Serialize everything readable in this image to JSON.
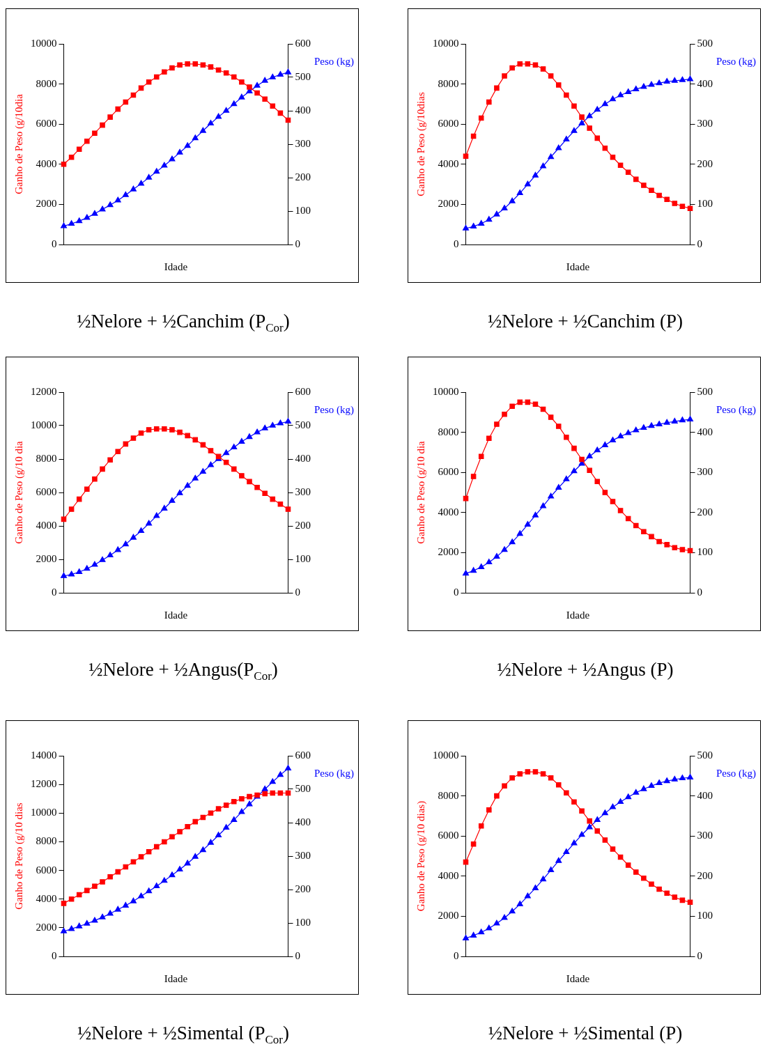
{
  "chart_data": [
    {
      "type": "line",
      "title": "½Nelore + ½Canchim (P$_{Cor}$)",
      "xlabel": "Idade",
      "ylabel": "Ganho de Peso (g/10dia",
      "y2label": "Peso (kg)",
      "categories": [
        null,
        null,
        null,
        null,
        null,
        null,
        null,
        null,
        null,
        null,
        null,
        null,
        null,
        null,
        null,
        null,
        null,
        null,
        null,
        null,
        null,
        null,
        null,
        null,
        null,
        null,
        null,
        null,
        null,
        null
      ],
      "ylim": [
        0,
        10000
      ],
      "yticks": [
        0,
        2000,
        4000,
        6000,
        8000,
        10000
      ],
      "y2lim": [
        0,
        600
      ],
      "y2ticks": [
        0,
        100,
        200,
        300,
        400,
        500,
        600
      ],
      "tick_labels": [
        "y",
        "y2"
      ],
      "grid": false,
      "legend": false,
      "line_style": "solid",
      "series": [
        {
          "color": "#ff0000",
          "marker": "square",
          "values": [
            4000,
            4350,
            4750,
            5150,
            5550,
            5950,
            6350,
            6750,
            7100,
            7450,
            7800,
            8100,
            8350,
            8600,
            8800,
            8950,
            9000,
            9000,
            8950,
            8850,
            8700,
            8550,
            8350,
            8100,
            7850,
            7550,
            7250,
            6900,
            6550,
            6200
          ]
        },
        {
          "color": "#0000ff",
          "marker": "triangle",
          "axis": "y2",
          "values": [
            55,
            62,
            70,
            80,
            92,
            105,
            118,
            132,
            148,
            165,
            182,
            200,
            218,
            236,
            255,
            275,
            295,
            318,
            340,
            362,
            382,
            400,
            420,
            440,
            458,
            475,
            490,
            500,
            508,
            515
          ]
        }
      ]
    },
    {
      "type": "line",
      "title": "½Nelore + ½Canchim (P)",
      "xlabel": "Idade",
      "ylabel": "Ganho de Peso (g/10dias",
      "y2label": "Peso (kg)",
      "categories": [
        null,
        null,
        null,
        null,
        null,
        null,
        null,
        null,
        null,
        null,
        null,
        null,
        null,
        null,
        null,
        null,
        null,
        null,
        null,
        null,
        null,
        null,
        null,
        null,
        null,
        null,
        null,
        null,
        null,
        null
      ],
      "ylim": [
        0,
        10000
      ],
      "yticks": [
        0,
        2000,
        4000,
        6000,
        8000,
        10000
      ],
      "y2lim": [
        0,
        500
      ],
      "y2ticks": [
        0,
        100,
        200,
        300,
        400,
        500
      ],
      "tick_labels": [
        "y",
        "y2"
      ],
      "grid": false,
      "legend": false,
      "line_style": "solid",
      "series": [
        {
          "color": "#ff0000",
          "marker": "square",
          "values": [
            4400,
            5400,
            6300,
            7100,
            7800,
            8400,
            8800,
            9000,
            9000,
            8950,
            8750,
            8400,
            7950,
            7450,
            6900,
            6350,
            5800,
            5300,
            4800,
            4350,
            3950,
            3600,
            3250,
            2950,
            2700,
            2450,
            2250,
            2050,
            1900,
            1800
          ]
        },
        {
          "color": "#0000ff",
          "marker": "triangle",
          "axis": "y2",
          "values": [
            40,
            45,
            52,
            62,
            75,
            90,
            108,
            128,
            150,
            172,
            195,
            218,
            240,
            262,
            283,
            302,
            320,
            336,
            350,
            362,
            372,
            380,
            387,
            393,
            398,
            402,
            406,
            408,
            410,
            412
          ]
        }
      ]
    },
    {
      "type": "line",
      "title": "½Nelore + ½Angus(P$_{Cor}$)",
      "xlabel": "Idade",
      "ylabel": "Ganho de Peso (g/10 dia",
      "y2label": "Peso (kg)",
      "categories": [
        null,
        null,
        null,
        null,
        null,
        null,
        null,
        null,
        null,
        null,
        null,
        null,
        null,
        null,
        null,
        null,
        null,
        null,
        null,
        null,
        null,
        null,
        null,
        null,
        null,
        null,
        null,
        null,
        null,
        null
      ],
      "ylim": [
        0,
        12000
      ],
      "yticks": [
        0,
        2000,
        4000,
        6000,
        8000,
        10000,
        12000
      ],
      "y2lim": [
        0,
        600
      ],
      "y2ticks": [
        0,
        100,
        200,
        300,
        400,
        500,
        600
      ],
      "tick_labels": [
        "y",
        "y2"
      ],
      "grid": false,
      "legend": false,
      "line_style": "solid",
      "series": [
        {
          "color": "#ff0000",
          "marker": "square",
          "values": [
            4400,
            5000,
            5600,
            6200,
            6800,
            7400,
            7950,
            8450,
            8900,
            9250,
            9550,
            9750,
            9800,
            9800,
            9750,
            9600,
            9400,
            9150,
            8850,
            8500,
            8150,
            7800,
            7400,
            7000,
            6650,
            6300,
            5950,
            5600,
            5300,
            5000
          ]
        },
        {
          "color": "#0000ff",
          "marker": "triangle",
          "axis": "y2",
          "values": [
            50,
            55,
            62,
            72,
            84,
            98,
            112,
            128,
            145,
            165,
            185,
            207,
            230,
            252,
            275,
            298,
            320,
            342,
            362,
            382,
            400,
            418,
            435,
            452,
            466,
            480,
            492,
            500,
            507,
            512
          ]
        }
      ]
    },
    {
      "type": "line",
      "title": "½Nelore + ½Angus (P)",
      "xlabel": "Idade",
      "ylabel": "Ganho de Peso (g/10 dia",
      "y2label": "Peso (kg)",
      "categories": [
        null,
        null,
        null,
        null,
        null,
        null,
        null,
        null,
        null,
        null,
        null,
        null,
        null,
        null,
        null,
        null,
        null,
        null,
        null,
        null,
        null,
        null,
        null,
        null,
        null,
        null,
        null,
        null,
        null,
        null
      ],
      "ylim": [
        0,
        10000
      ],
      "yticks": [
        0,
        2000,
        4000,
        6000,
        8000,
        10000
      ],
      "y2lim": [
        0,
        500
      ],
      "y2ticks": [
        0,
        100,
        200,
        300,
        400,
        500
      ],
      "tick_labels": [
        "y",
        "y2"
      ],
      "grid": false,
      "legend": false,
      "line_style": "solid",
      "series": [
        {
          "color": "#ff0000",
          "marker": "square",
          "values": [
            4700,
            5800,
            6800,
            7700,
            8400,
            8900,
            9300,
            9500,
            9500,
            9400,
            9150,
            8750,
            8300,
            7750,
            7200,
            6650,
            6100,
            5550,
            5000,
            4550,
            4100,
            3700,
            3350,
            3050,
            2800,
            2550,
            2400,
            2250,
            2150,
            2100
          ]
        },
        {
          "color": "#0000ff",
          "marker": "triangle",
          "axis": "y2",
          "values": [
            48,
            55,
            64,
            76,
            90,
            107,
            126,
            147,
            170,
            193,
            216,
            240,
            262,
            283,
            303,
            322,
            340,
            355,
            368,
            380,
            390,
            398,
            405,
            411,
            416,
            420,
            424,
            427,
            430,
            432
          ]
        }
      ]
    },
    {
      "type": "line",
      "title": "½Nelore + ½Simental (P$_{Cor}$)",
      "xlabel": "Idade",
      "ylabel": "Ganho de Peso (g/10 dias",
      "y2label": "Peso (kg)",
      "categories": [
        null,
        null,
        null,
        null,
        null,
        null,
        null,
        null,
        null,
        null,
        null,
        null,
        null,
        null,
        null,
        null,
        null,
        null,
        null,
        null,
        null,
        null,
        null,
        null,
        null,
        null,
        null,
        null,
        null,
        null
      ],
      "ylim": [
        0,
        14000
      ],
      "yticks": [
        0,
        2000,
        4000,
        6000,
        8000,
        10000,
        12000,
        14000
      ],
      "y2lim": [
        0,
        600
      ],
      "y2ticks": [
        0,
        100,
        200,
        300,
        400,
        500,
        600
      ],
      "tick_labels": [
        "y",
        "y2"
      ],
      "grid": false,
      "legend": false,
      "line_style": "solid",
      "series": [
        {
          "color": "#ff0000",
          "marker": "square",
          "values": [
            3700,
            4000,
            4300,
            4600,
            4900,
            5200,
            5550,
            5900,
            6250,
            6600,
            6950,
            7300,
            7650,
            8000,
            8350,
            8700,
            9050,
            9400,
            9700,
            10000,
            10300,
            10550,
            10800,
            11000,
            11150,
            11250,
            11350,
            11400,
            11400,
            11400
          ]
        },
        {
          "color": "#0000ff",
          "marker": "triangle",
          "axis": "y2",
          "values": [
            75,
            82,
            90,
            98,
            107,
            117,
            128,
            140,
            152,
            165,
            180,
            195,
            210,
            226,
            243,
            260,
            278,
            298,
            318,
            340,
            362,
            385,
            408,
            432,
            455,
            478,
            500,
            522,
            543,
            562
          ]
        }
      ]
    },
    {
      "type": "line",
      "title": "½Nelore + ½Simental (P)",
      "xlabel": "Idade",
      "ylabel": "Ganho de Peso (g/10 dias)",
      "y2label": "Peso (kg)",
      "categories": [
        null,
        null,
        null,
        null,
        null,
        null,
        null,
        null,
        null,
        null,
        null,
        null,
        null,
        null,
        null,
        null,
        null,
        null,
        null,
        null,
        null,
        null,
        null,
        null,
        null,
        null,
        null,
        null,
        null,
        null
      ],
      "ylim": [
        0,
        10000
      ],
      "yticks": [
        0,
        2000,
        4000,
        6000,
        8000,
        10000
      ],
      "y2lim": [
        0,
        500
      ],
      "y2ticks": [
        0,
        100,
        200,
        300,
        400,
        500
      ],
      "tick_labels": [
        "y",
        "y2"
      ],
      "grid": false,
      "legend": false,
      "line_style": "solid",
      "series": [
        {
          "color": "#ff0000",
          "marker": "square",
          "values": [
            4700,
            5600,
            6500,
            7300,
            8000,
            8500,
            8900,
            9100,
            9200,
            9200,
            9100,
            8900,
            8550,
            8150,
            7700,
            7250,
            6750,
            6250,
            5800,
            5350,
            4950,
            4550,
            4200,
            3900,
            3600,
            3350,
            3150,
            2950,
            2800,
            2700
          ]
        },
        {
          "color": "#0000ff",
          "marker": "triangle",
          "axis": "y2",
          "values": [
            45,
            52,
            60,
            70,
            82,
            96,
            112,
            130,
            150,
            170,
            192,
            215,
            238,
            260,
            282,
            303,
            322,
            340,
            357,
            372,
            385,
            397,
            408,
            417,
            425,
            432,
            437,
            441,
            444,
            446
          ]
        }
      ]
    }
  ]
}
